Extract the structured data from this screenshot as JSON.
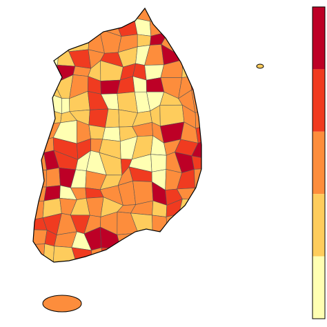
{
  "map": {
    "legend_colors": [
      "#bd0026",
      "#f03b20",
      "#fd8d3c",
      "#fecc5c",
      "#ffffb2"
    ]
  }
}
